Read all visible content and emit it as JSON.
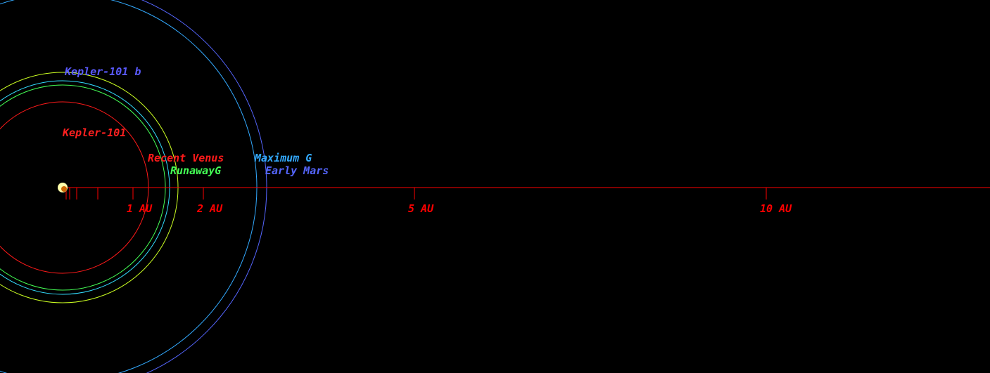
{
  "star": {
    "name": "Kepler-101",
    "color": "#ff2020",
    "marker_color": "#ffffaa"
  },
  "axis": {
    "color": "#ff0000",
    "unit": "AU",
    "labeled_ticks": [
      {
        "value": 1,
        "label": "1 AU"
      },
      {
        "value": 2,
        "label": "2 AU"
      },
      {
        "value": 5,
        "label": "5 AU"
      },
      {
        "value": 10,
        "label": "10 AU"
      }
    ],
    "minor_ticks": [
      0.05,
      0.1,
      0.2,
      0.5
    ]
  },
  "zones": [
    {
      "name": "Recent Venus",
      "radius_au": 1.22,
      "color": "#ff1a1a"
    },
    {
      "name": "RunawayG",
      "radius_au": 1.46,
      "color": "#44ff55"
    },
    {
      "name": "Maximum G",
      "radius_au": 2.76,
      "color": "#33aaff"
    },
    {
      "name": "Early Mars",
      "radius_au": 2.9,
      "color": "#5566ff"
    },
    {
      "name": "",
      "radius_au": 1.64,
      "color": "#ccff22"
    },
    {
      "name": "",
      "radius_au": 1.52,
      "color": "#33ddff"
    }
  ],
  "planets": [
    {
      "name": "Kepler-101 b",
      "color": "#5a5aff"
    }
  ]
}
